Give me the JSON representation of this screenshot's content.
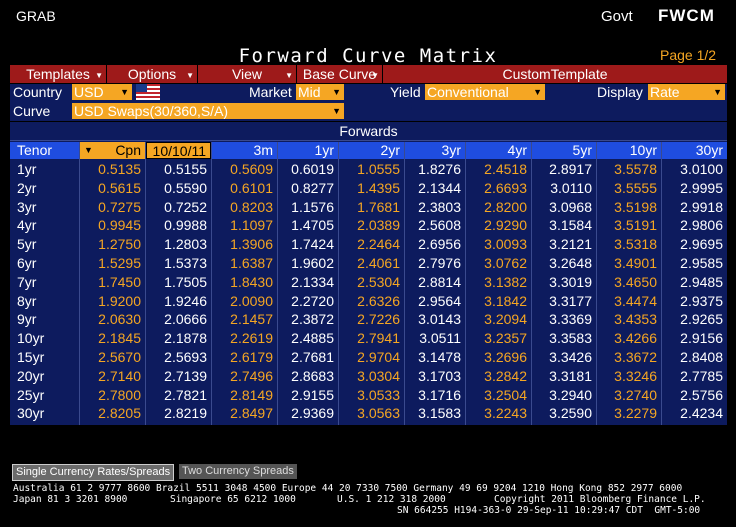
{
  "header": {
    "left_label": "GRAB",
    "govt_label": "Govt",
    "function_code": "FWCM",
    "title": "Forward Curve Matrix",
    "page_indicator": "Page 1/2"
  },
  "menu": {
    "templates": "Templates",
    "options": "Options",
    "view": "View",
    "base_curve": "Base Curve",
    "custom_template": "CustomTemplate"
  },
  "controls": {
    "country_label": "Country",
    "country_value": "USD",
    "market_label": "Market",
    "market_value": "Mid",
    "yield_label": "Yield",
    "yield_value": "Conventional",
    "display_label": "Display",
    "display_value": "Rate",
    "curve_label": "Curve",
    "curve_value": "USD Swaps(30/360,S/A)"
  },
  "matrix": {
    "section_title": "Forwards",
    "headers": {
      "tenor": "Tenor",
      "cpn": "Cpn",
      "date": "10/10/11",
      "forwards": [
        "3m",
        "1yr",
        "2yr",
        "3yr",
        "4yr",
        "5yr",
        "10yr",
        "30yr"
      ]
    },
    "rows": [
      {
        "tenor": "1yr",
        "cpn": "0.5135",
        "date": "0.5155",
        "values": [
          "0.5609",
          "0.6019",
          "1.0555",
          "1.8276",
          "2.4518",
          "2.8917",
          "3.5578",
          "3.0100"
        ]
      },
      {
        "tenor": "2yr",
        "cpn": "0.5615",
        "date": "0.5590",
        "values": [
          "0.6101",
          "0.8277",
          "1.4395",
          "2.1344",
          "2.6693",
          "3.0110",
          "3.5555",
          "2.9995"
        ]
      },
      {
        "tenor": "3yr",
        "cpn": "0.7275",
        "date": "0.7252",
        "values": [
          "0.8203",
          "1.1576",
          "1.7681",
          "2.3803",
          "2.8200",
          "3.0968",
          "3.5198",
          "2.9918"
        ]
      },
      {
        "tenor": "4yr",
        "cpn": "0.9945",
        "date": "0.9988",
        "values": [
          "1.1097",
          "1.4705",
          "2.0389",
          "2.5608",
          "2.9290",
          "3.1584",
          "3.5191",
          "2.9806"
        ]
      },
      {
        "tenor": "5yr",
        "cpn": "1.2750",
        "date": "1.2803",
        "values": [
          "1.3906",
          "1.7424",
          "2.2464",
          "2.6956",
          "3.0093",
          "3.2121",
          "3.5318",
          "2.9695"
        ]
      },
      {
        "tenor": "6yr",
        "cpn": "1.5295",
        "date": "1.5373",
        "values": [
          "1.6387",
          "1.9602",
          "2.4061",
          "2.7976",
          "3.0762",
          "3.2648",
          "3.4901",
          "2.9585"
        ]
      },
      {
        "tenor": "7yr",
        "cpn": "1.7450",
        "date": "1.7505",
        "values": [
          "1.8430",
          "2.1334",
          "2.5304",
          "2.8814",
          "3.1382",
          "3.3019",
          "3.4650",
          "2.9485"
        ]
      },
      {
        "tenor": "8yr",
        "cpn": "1.9200",
        "date": "1.9246",
        "values": [
          "2.0090",
          "2.2720",
          "2.6326",
          "2.9564",
          "3.1842",
          "3.3177",
          "3.4474",
          "2.9375"
        ]
      },
      {
        "tenor": "9yr",
        "cpn": "2.0630",
        "date": "2.0666",
        "values": [
          "2.1457",
          "2.3872",
          "2.7226",
          "3.0143",
          "3.2094",
          "3.3369",
          "3.4353",
          "2.9265"
        ]
      },
      {
        "tenor": "10yr",
        "cpn": "2.1845",
        "date": "2.1878",
        "values": [
          "2.2619",
          "2.4885",
          "2.7941",
          "3.0511",
          "3.2357",
          "3.3583",
          "3.4266",
          "2.9156"
        ]
      },
      {
        "tenor": "15yr",
        "cpn": "2.5670",
        "date": "2.5693",
        "values": [
          "2.6179",
          "2.7681",
          "2.9704",
          "3.1478",
          "3.2696",
          "3.3426",
          "3.3672",
          "2.8408"
        ]
      },
      {
        "tenor": "20yr",
        "cpn": "2.7140",
        "date": "2.7139",
        "values": [
          "2.7496",
          "2.8683",
          "3.0304",
          "3.1703",
          "3.2842",
          "3.3181",
          "3.3246",
          "2.7785"
        ]
      },
      {
        "tenor": "25yr",
        "cpn": "2.7800",
        "date": "2.7821",
        "values": [
          "2.8149",
          "2.9155",
          "3.0533",
          "3.1716",
          "3.2504",
          "3.2940",
          "3.2740",
          "2.5756"
        ]
      },
      {
        "tenor": "30yr",
        "cpn": "2.8205",
        "date": "2.8219",
        "values": [
          "2.8497",
          "2.9369",
          "3.0563",
          "3.1583",
          "3.2243",
          "3.2590",
          "3.2279",
          "2.4234"
        ]
      }
    ]
  },
  "tabs": {
    "single": "Single Currency Rates/Spreads",
    "two": "Two Currency Spreads"
  },
  "footer": {
    "line1": "Australia 61 2 9777 8600 Brazil 5511 3048 4500 Europe 44 20 7330 7500 Germany 49 69 9204 1210 Hong Kong 852 2977 6000",
    "line2a": "Japan 81 3 3201 8900",
    "line2b": "Singapore 65 6212 1000",
    "line2c": "U.S. 1 212 318 2000",
    "line2d": "Copyright 2011 Bloomberg Finance L.P.",
    "line3": "SN 664255 H194-363-0 29-Sep-11 10:29:47 CDT  GMT-5:00"
  },
  "colors": {
    "orange": "#f5a623",
    "navy": "#0d1b5e",
    "header_blue": "#1f4de0",
    "menu_red": "#9e1a1a"
  },
  "icons": {
    "flag": "us-flag-icon"
  }
}
